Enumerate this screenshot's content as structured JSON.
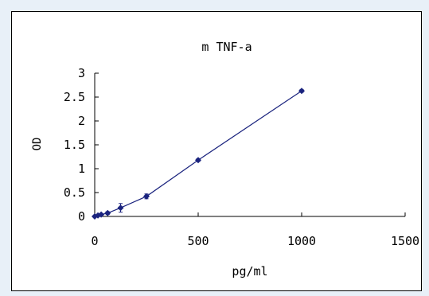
{
  "chart_data": {
    "type": "scatter",
    "title": "m TNF-a",
    "xlabel": "pg/ml",
    "ylabel": "OD",
    "xlim": [
      0,
      1500
    ],
    "ylim": [
      0,
      3
    ],
    "xticks": [
      0,
      500,
      1000,
      1500
    ],
    "yticks": [
      0,
      0.5,
      1,
      1.5,
      2,
      2.5,
      3
    ],
    "ytick_labels": [
      "0",
      "0.5",
      "1",
      "1.5",
      "2",
      "2.5",
      "3"
    ],
    "xtick_labels": [
      "0",
      "500",
      "1000",
      "1500"
    ],
    "grid": false,
    "legend": "none",
    "series": [
      {
        "x": [
          0,
          15.6,
          31.25,
          62.5,
          125,
          250,
          500,
          1000
        ],
        "y": [
          0.0,
          0.02,
          0.04,
          0.07,
          0.18,
          0.42,
          1.18,
          2.63
        ],
        "errors": [
          0.02,
          0.02,
          0.02,
          0.03,
          0.09,
          0.05,
          0.03,
          0.03
        ],
        "color": "#1a237e"
      }
    ]
  }
}
